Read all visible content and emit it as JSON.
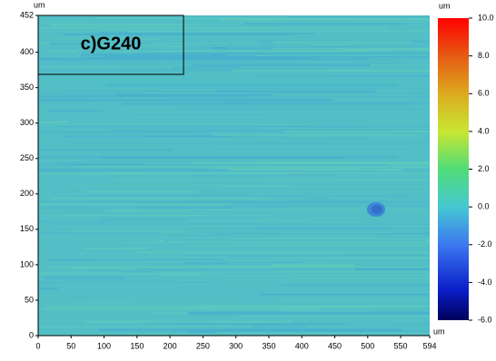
{
  "chart_data": {
    "type": "image",
    "annotation": "c)G240",
    "y_unit": "um",
    "x_unit": "um",
    "colorbar_unit": "um",
    "xlim": [
      0,
      594
    ],
    "xticks": [
      0,
      50,
      100,
      150,
      200,
      250,
      300,
      350,
      400,
      450,
      500,
      550,
      594
    ],
    "ylim": [
      0,
      452
    ],
    "yticks": [
      0,
      50,
      100,
      150,
      200,
      250,
      300,
      350,
      400,
      452
    ],
    "clim": [
      -6,
      10
    ],
    "cticks": [
      {
        "value": 10,
        "label": "10.0"
      },
      {
        "value": 8,
        "label": "8.0"
      },
      {
        "value": 6,
        "label": "6.0"
      },
      {
        "value": 4,
        "label": "4.0"
      },
      {
        "value": 2,
        "label": "2.0"
      },
      {
        "value": 0,
        "label": "0.0"
      },
      {
        "value": -2,
        "label": "-2.0"
      },
      {
        "value": -4,
        "label": "-4.0"
      },
      {
        "value": -6,
        "label": "-6.0"
      }
    ]
  }
}
